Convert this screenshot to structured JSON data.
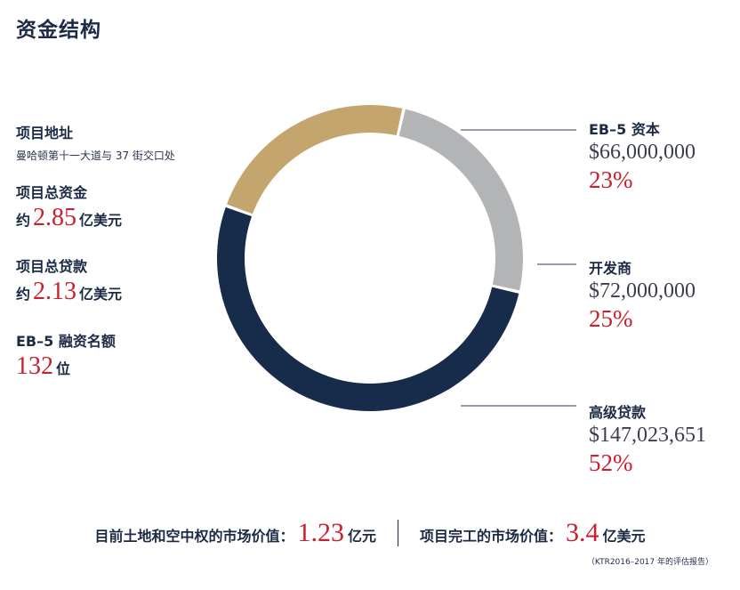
{
  "title": "资金结构",
  "info": {
    "address": {
      "label": "项目地址",
      "value": "曼哈顿第十一大道与 37 街交口处"
    },
    "total_capital": {
      "label": "项目总资金",
      "prefix": "约",
      "value": "2.85",
      "unit": "亿美元"
    },
    "total_loan": {
      "label": "项目总贷款",
      "prefix": "约",
      "value": "2.13",
      "unit": "亿美元"
    },
    "eb5_quota": {
      "label": "EB–5 融资名额",
      "value": "132",
      "unit": "位"
    }
  },
  "chart_data": {
    "type": "pie",
    "donut": true,
    "categories": [
      "EB–5 资本",
      "开发商",
      "高级贷款"
    ],
    "amount_labels": [
      "$66,000,000",
      "$72,000,000",
      "$147,023,651"
    ],
    "amounts": [
      66000000,
      72000000,
      147023651
    ],
    "percent_labels": [
      "23%",
      "25%",
      "52%"
    ],
    "values": [
      23,
      25,
      52
    ],
    "colors": [
      "#c4a56e",
      "#b3b4b6",
      "#172b4a"
    ]
  },
  "bottom": {
    "land_label": "目前土地和空中权的市场价值：",
    "land_value": "1.23",
    "land_unit": "亿元",
    "completed_label": "项目完工的市场价值：",
    "completed_value": "3.4",
    "completed_unit": "亿美元",
    "source": "（KTR2016–2017 年的评估报告）"
  }
}
